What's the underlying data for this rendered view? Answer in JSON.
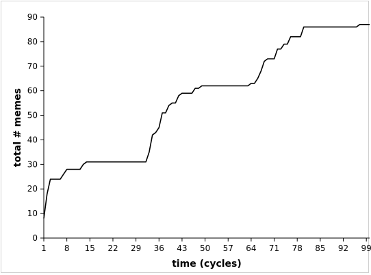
{
  "chart_data": {
    "type": "line",
    "title": "",
    "xlabel": "time (cycles)",
    "ylabel": "total # memes",
    "xlim": [
      1,
      100
    ],
    "ylim": [
      0,
      90
    ],
    "xticks": [
      1,
      8,
      15,
      22,
      29,
      36,
      43,
      50,
      57,
      64,
      71,
      78,
      85,
      92,
      99
    ],
    "yticks": [
      0,
      10,
      20,
      30,
      40,
      50,
      60,
      70,
      80,
      90
    ],
    "grid": false,
    "legend": "none",
    "line_color": "#000000",
    "series": [
      {
        "x": [
          1,
          2,
          3,
          6,
          7,
          8,
          12,
          13,
          14,
          32,
          33,
          34,
          35,
          36,
          37,
          38,
          39,
          40,
          41,
          42,
          43,
          44,
          46,
          47,
          48,
          49,
          50,
          62,
          63,
          64,
          65,
          66,
          67,
          68,
          69,
          70,
          71,
          72,
          73,
          74,
          75,
          76,
          77,
          78,
          79,
          80,
          81,
          96,
          97,
          100
        ],
        "y": [
          8,
          18,
          24,
          24,
          26,
          28,
          28,
          30,
          31,
          31,
          35,
          42,
          43,
          45,
          51,
          51,
          54,
          55,
          55,
          58,
          59,
          59,
          59,
          61,
          61,
          62,
          62,
          62,
          62,
          63,
          63,
          65,
          68,
          72,
          73,
          73,
          73,
          77,
          77,
          79,
          79,
          82,
          82,
          82,
          82,
          86,
          86,
          86,
          87,
          87
        ]
      }
    ]
  }
}
